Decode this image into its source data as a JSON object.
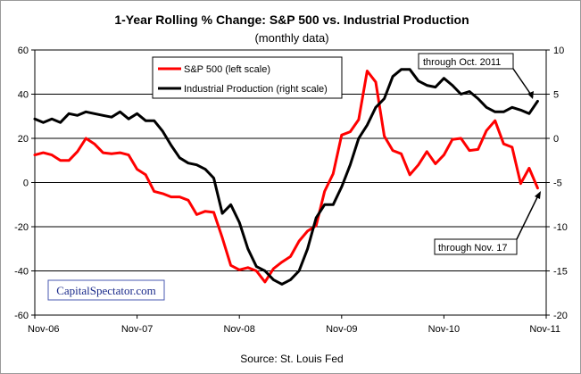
{
  "chart_data": {
    "type": "line",
    "title": "1-Year Rolling %  Change: S&P 500 vs. Industrial Production",
    "subtitle": "(monthly data)",
    "source": "Source: St. Louis Fed",
    "watermark": "CapitalSpectator.com",
    "x_ticks": [
      "Nov-06",
      "Nov-07",
      "Nov-08",
      "Nov-09",
      "Nov-10",
      "Nov-11"
    ],
    "y_left": {
      "ylim": [
        -60,
        60
      ],
      "ticks": [
        "60",
        "40",
        "20",
        "0",
        "-20",
        "-40",
        "-60"
      ]
    },
    "y_right": {
      "ylim": [
        -20,
        10
      ],
      "ticks": [
        "10",
        "5",
        "0",
        "-5",
        "-10",
        "-15",
        "-20"
      ]
    },
    "grid": "horizontal",
    "legend_placement": "top-left",
    "colors": {
      "sp500": "#ff0000",
      "indpro": "#000000"
    },
    "series": [
      {
        "name": "S&P 500 (left scale)",
        "axis": "left",
        "color": "#ff0000",
        "values": [
          12.5,
          13.5,
          12.5,
          10,
          10,
          14,
          20,
          17.5,
          13.5,
          13,
          13.5,
          12.5,
          6,
          3.5,
          -4,
          -5,
          -6.5,
          -6.5,
          -8,
          -14.5,
          -13,
          -13.5,
          -25,
          -37.5,
          -39.5,
          -38.5,
          -40,
          -45,
          -39,
          -36,
          -33.5,
          -26.5,
          -22,
          -19.5,
          -4,
          4,
          21.5,
          23,
          28.5,
          50.5,
          45.5,
          21,
          14.5,
          13,
          3.5,
          8,
          14,
          8.5,
          12.5,
          19.5,
          20,
          14.5,
          15,
          23.5,
          28,
          17.5,
          16,
          -0.5,
          6.5,
          -2.5
        ],
        "annotation": "through Nov. 17"
      },
      {
        "name": "Industrial Production (right scale)",
        "axis": "right",
        "color": "#000000",
        "values": [
          2.2,
          1.8,
          2.2,
          1.8,
          2.8,
          2.6,
          3.0,
          2.8,
          2.6,
          2.4,
          3.0,
          2.2,
          2.8,
          2.0,
          2.0,
          0.8,
          -0.8,
          -2.2,
          -2.8,
          -3.0,
          -3.5,
          -4.5,
          -8.5,
          -7.5,
          -9.5,
          -12.5,
          -14.5,
          -15.0,
          -16.0,
          -16.5,
          -16.0,
          -15.0,
          -12.5,
          -9.0,
          -7.5,
          -7.5,
          -5.5,
          -3.0,
          0.0,
          1.5,
          3.5,
          4.5,
          7.0,
          7.8,
          7.8,
          6.5,
          6.0,
          5.8,
          6.8,
          6.0,
          5.0,
          5.3,
          4.5,
          3.5,
          3.0,
          3.0,
          3.5,
          3.2,
          2.8,
          4.2
        ],
        "annotation": "through Oct. 2011"
      }
    ]
  }
}
